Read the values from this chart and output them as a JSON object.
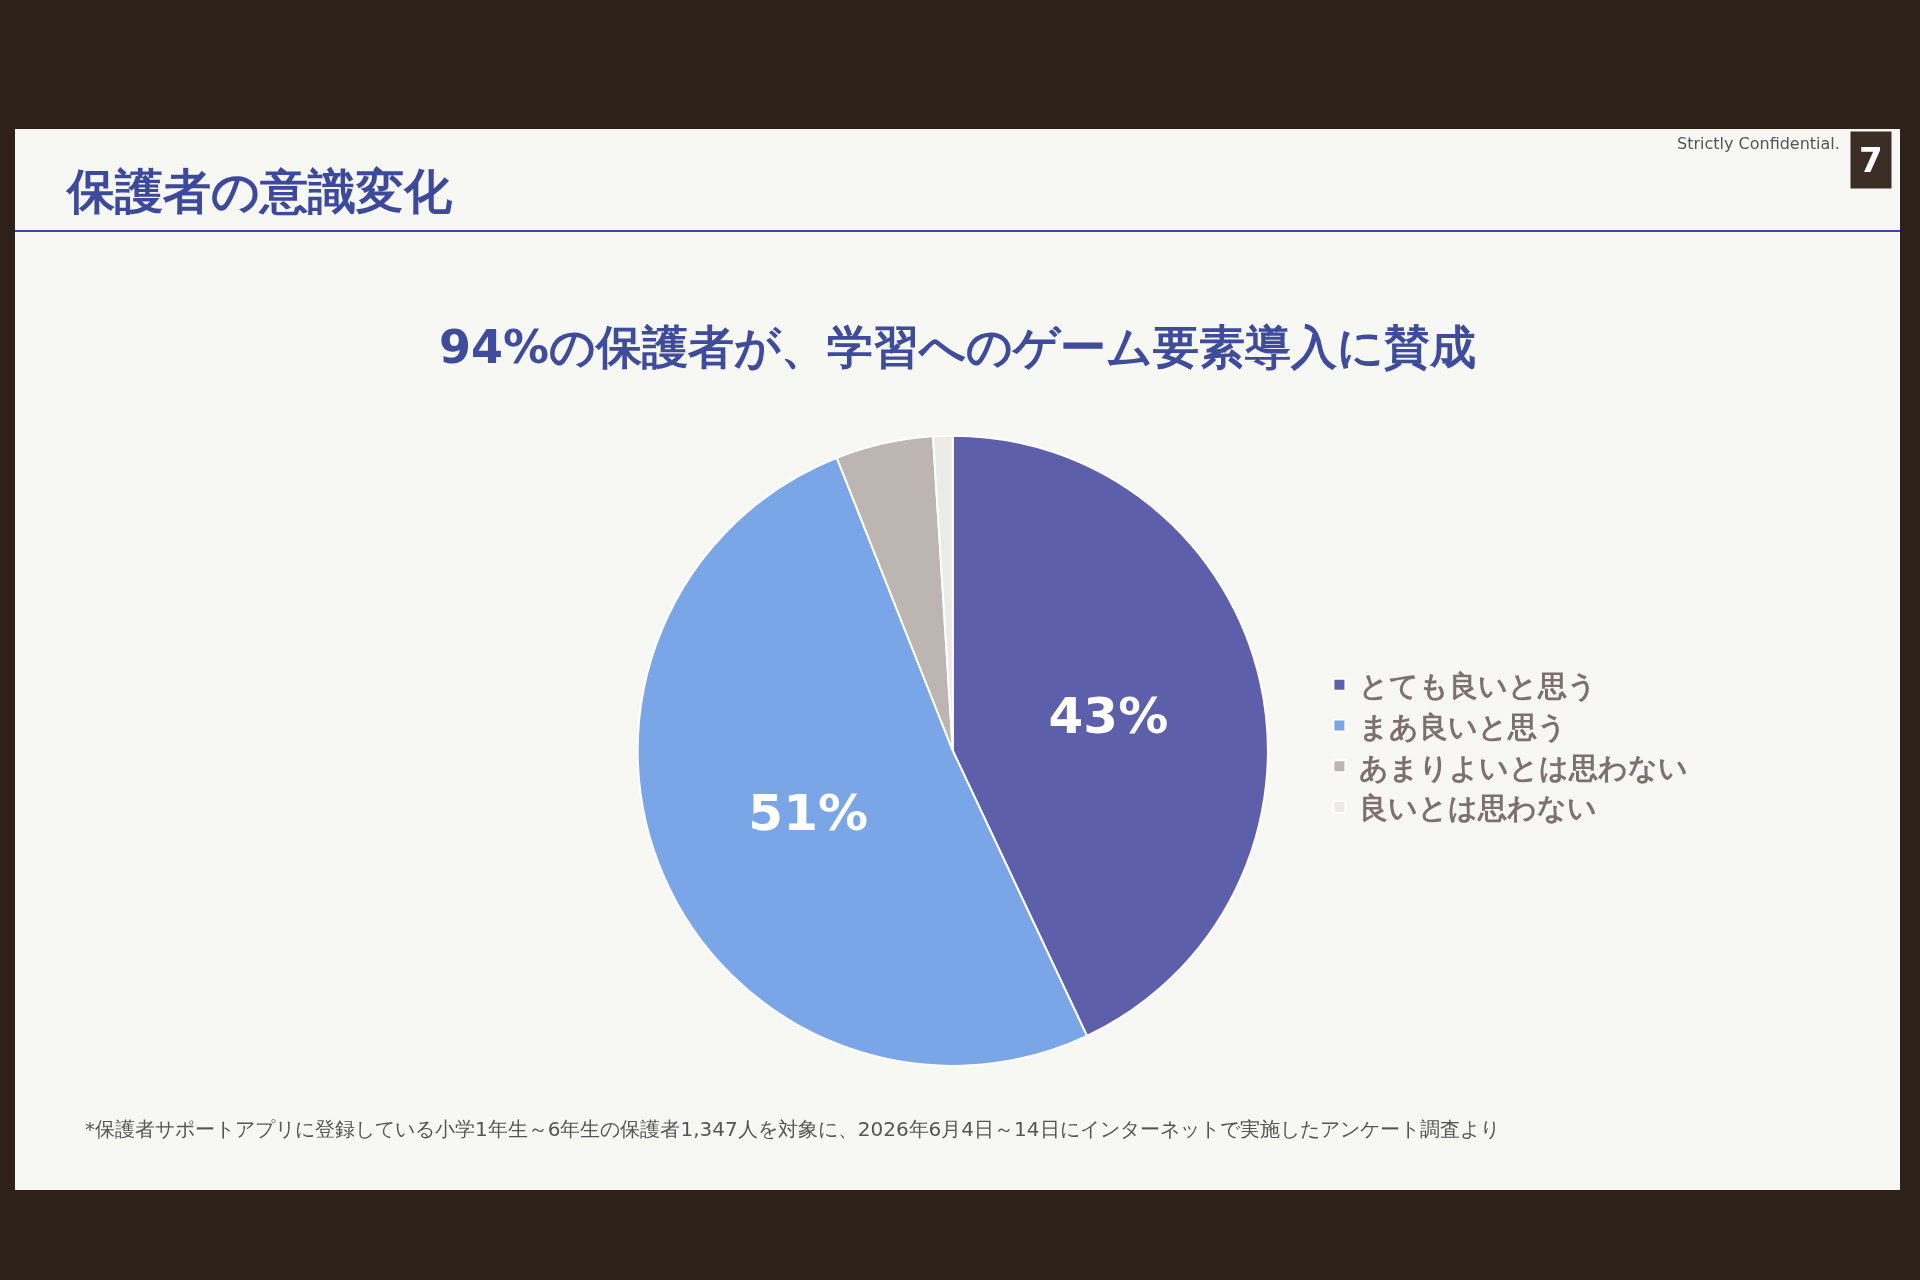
{
  "chart_data": {
    "type": "pie",
    "title": "保護者の意識変化",
    "subtitle": "94%の保護者が、学習へのゲーム要素導入に賛成",
    "categories": [
      "とても良いと思う",
      "まあ良いと思う",
      "あまりよいとは思わない",
      "良いとは思わない"
    ],
    "values": [
      43,
      51,
      5,
      1
    ],
    "colors": [
      "#5d5fab",
      "#7aa6e8",
      "#bdb5b1",
      "#ecebe8"
    ],
    "value_labels": [
      "43%",
      "51%",
      null,
      null
    ],
    "legend": "right",
    "annotations": [
      "Strictly Confidential.",
      "7",
      "*保護者サポートアプリに登録している小学1年生～6年生の保護者1,347人を対象に、2026年6月4日～14日にインターネットで実施したアンケート調査より"
    ]
  }
}
